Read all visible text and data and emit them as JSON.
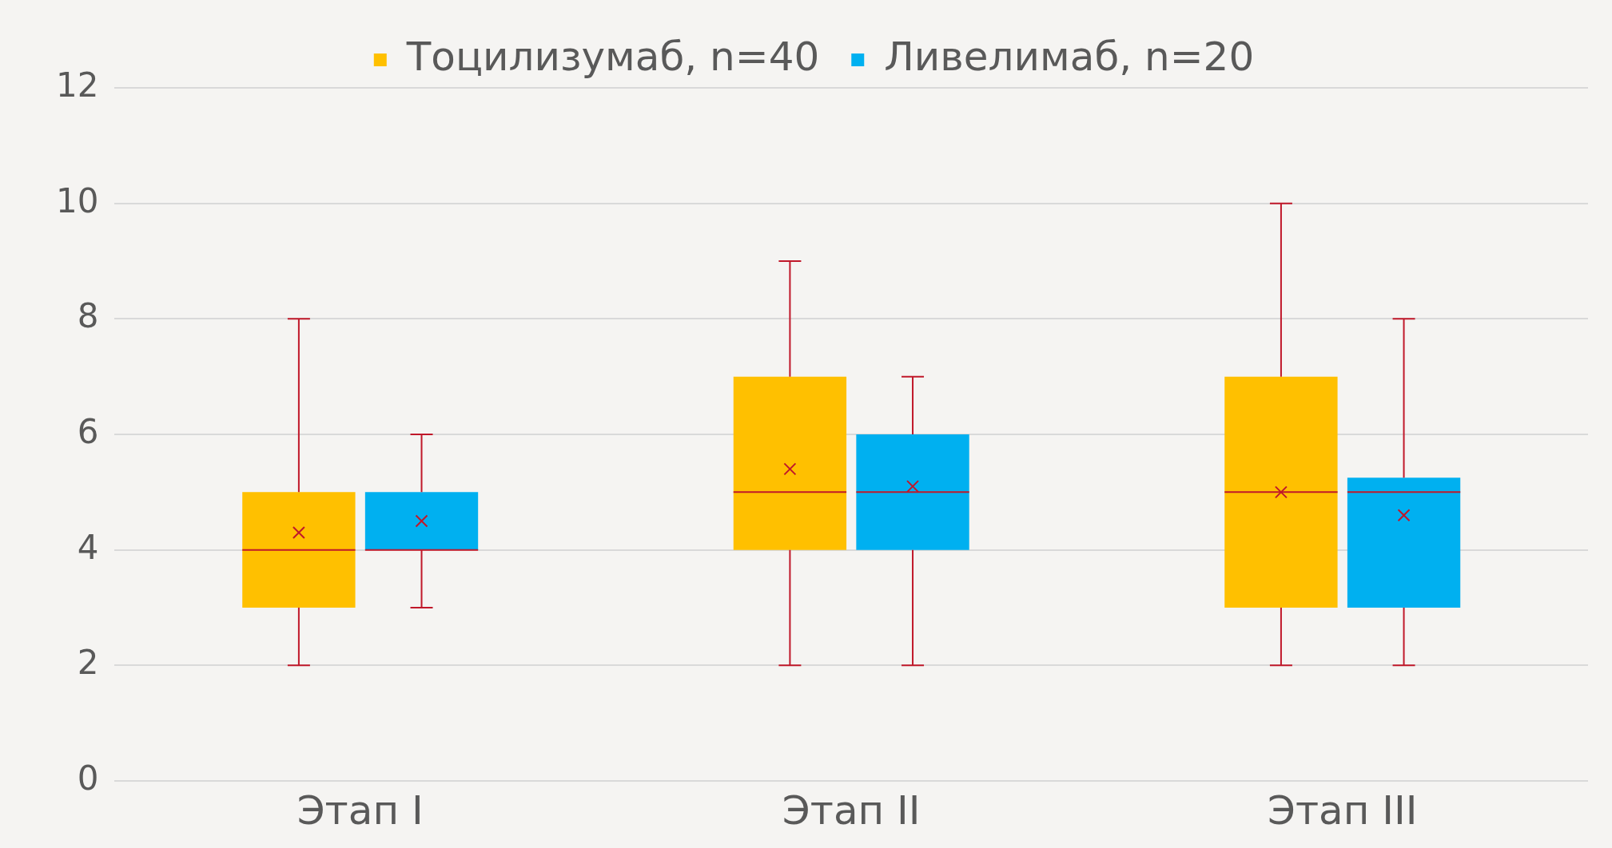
{
  "chart_data": {
    "type": "box",
    "categories": [
      "Этап I",
      "Этап II",
      "Этап III"
    ],
    "series": [
      {
        "name": "Тоцилизумаб, n=40",
        "color": "#ffc000",
        "boxes": [
          {
            "low": 2,
            "q1": 3,
            "median": 4,
            "q3": 5,
            "high": 8,
            "mean": 4.3
          },
          {
            "low": 2,
            "q1": 4,
            "median": 5,
            "q3": 7,
            "high": 9,
            "mean": 5.4
          },
          {
            "low": 2,
            "q1": 3,
            "median": 5,
            "q3": 7,
            "high": 10,
            "mean": 5.0
          }
        ]
      },
      {
        "name": "Ливелимаб, n=20",
        "color": "#00b0f0",
        "boxes": [
          {
            "low": 3,
            "q1": 4,
            "median": 4,
            "q3": 5,
            "high": 6,
            "mean": 4.5
          },
          {
            "low": 2,
            "q1": 4,
            "median": 5,
            "q3": 6,
            "high": 7,
            "mean": 5.1
          },
          {
            "low": 2,
            "q1": 3,
            "median": 5,
            "q3": 5.25,
            "high": 8,
            "mean": 4.6
          }
        ]
      }
    ],
    "ylim": [
      0,
      12
    ],
    "yticks": [
      0,
      2,
      4,
      6,
      8,
      10,
      12
    ],
    "grid": "y",
    "legend": "top",
    "marker": "cross"
  }
}
